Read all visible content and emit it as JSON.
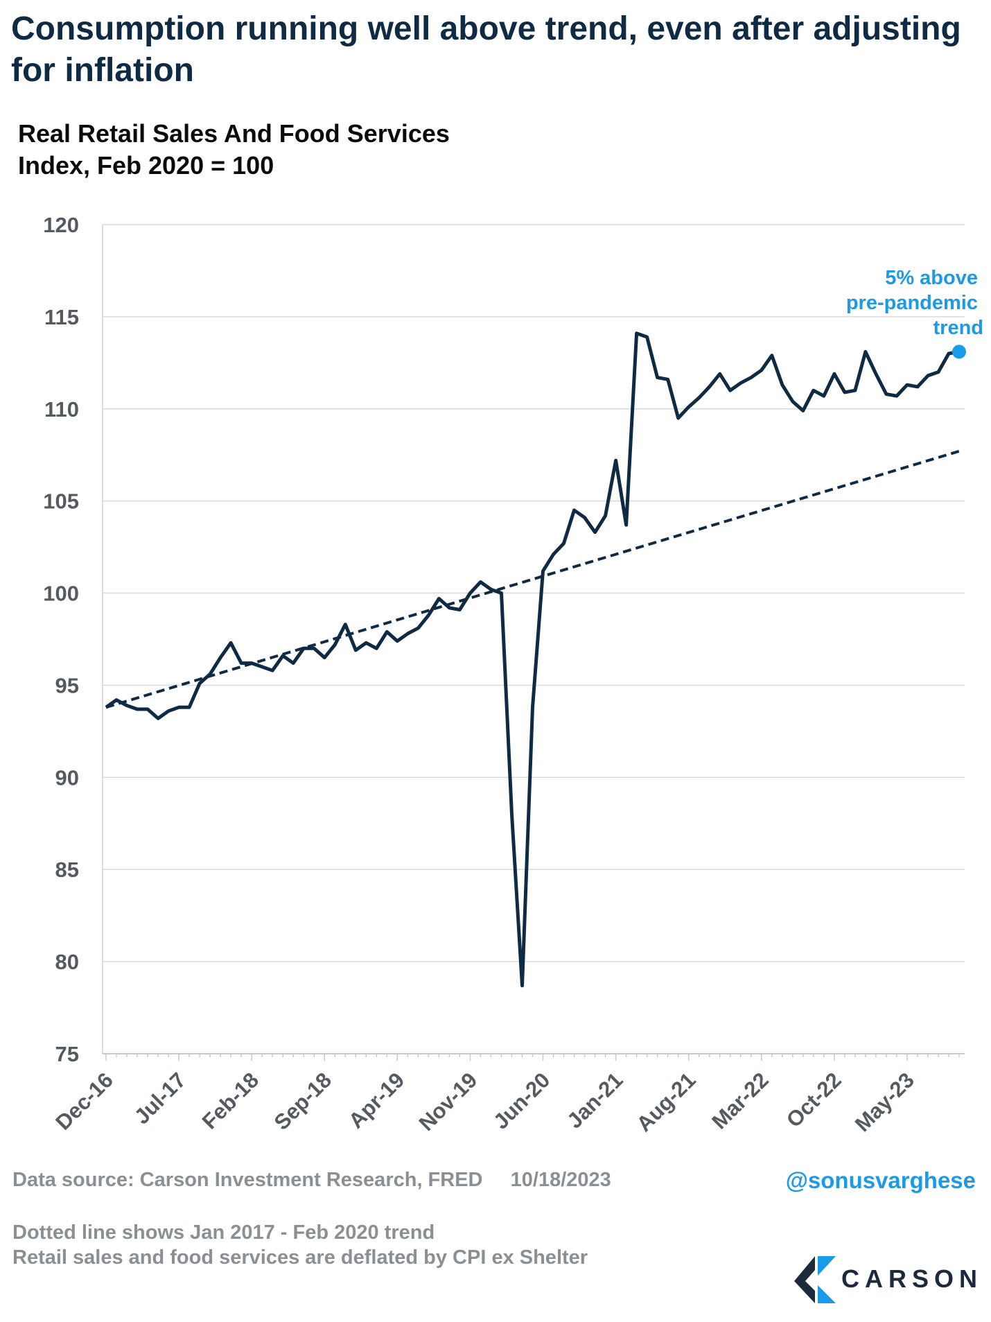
{
  "header": {
    "title": "Consumption running well above trend, even after adjusting for inflation"
  },
  "chart_data": {
    "type": "line",
    "title": "Real Retail Sales And Food Services",
    "subtitle": "Index, Feb 2020 = 100",
    "ylim": [
      75,
      120
    ],
    "yticks": [
      75,
      80,
      85,
      90,
      95,
      100,
      105,
      110,
      115,
      120
    ],
    "x_start": "Dec-16",
    "x_labels": [
      "Dec-16",
      "Jul-17",
      "Feb-18",
      "Sep-18",
      "Apr-19",
      "Nov-19",
      "Jun-20",
      "Jan-21",
      "Aug-21",
      "Mar-22",
      "Oct-22",
      "May-23"
    ],
    "grid": true,
    "series": [
      {
        "style": "solid",
        "color": "#0f2a43",
        "values": [
          93.8,
          94.2,
          93.9,
          93.7,
          93.7,
          93.2,
          93.6,
          93.8,
          93.8,
          95.1,
          95.6,
          96.5,
          97.3,
          96.2,
          96.2,
          96.0,
          95.8,
          96.6,
          96.2,
          97.0,
          97.0,
          96.5,
          97.2,
          98.3,
          96.9,
          97.3,
          97.0,
          97.9,
          97.4,
          97.8,
          98.1,
          98.8,
          99.7,
          99.2,
          99.1,
          100.0,
          100.6,
          100.2,
          100.0,
          88.0,
          78.7,
          93.8,
          101.2,
          102.1,
          102.7,
          104.5,
          104.1,
          103.3,
          104.2,
          107.2,
          103.7,
          114.1,
          113.9,
          111.7,
          111.6,
          109.5,
          110.1,
          110.6,
          111.2,
          111.9,
          111.0,
          111.4,
          111.7,
          112.1,
          112.9,
          111.3,
          110.4,
          109.9,
          111.0,
          110.7,
          111.9,
          110.9,
          111.0,
          113.1,
          111.9,
          110.8,
          110.7,
          111.3,
          111.2,
          111.8,
          112.0,
          113.0,
          113.1
        ]
      },
      {
        "style": "dashed",
        "color": "#0f2a43",
        "start": 93.8,
        "end": 107.7
      }
    ],
    "endpoint_color": "#1a9ae8",
    "annotation": [
      "5% above",
      "pre-pandemic",
      "trend"
    ]
  },
  "footer": {
    "source": "Data source: Carson Investment Research, FRED",
    "date": "10/18/2023",
    "handle": "@sonusvarghese",
    "note1": "Dotted line shows Jan 2017 - Feb 2020 trend",
    "note2": "Retail sales and food services are deflated by CPI ex Shelter"
  },
  "logo": {
    "text": "CARSON",
    "color": "#1b2a3c",
    "accent_color": "#1a9ae8"
  }
}
